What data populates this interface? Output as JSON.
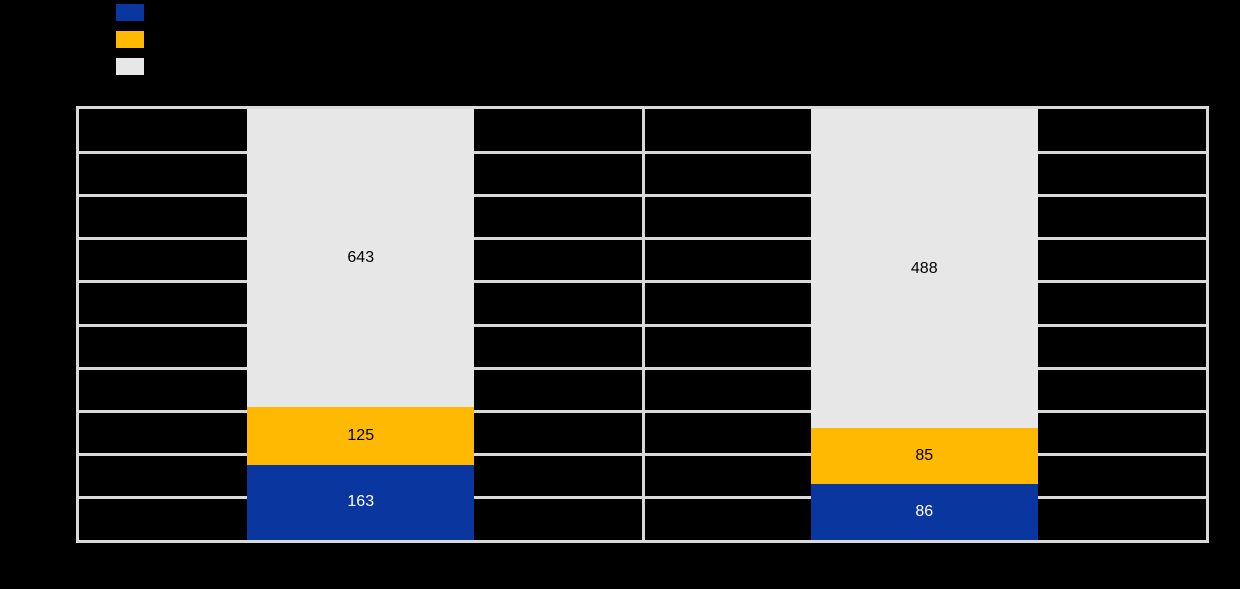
{
  "page": {
    "background_color": "#000000"
  },
  "legend": {
    "position": "top-left",
    "items": [
      {
        "name": "legend-item-blue",
        "swatch_color": "#0A36A0",
        "label": ""
      },
      {
        "name": "legend-item-yellow",
        "swatch_color": "#FFB900",
        "label": ""
      },
      {
        "name": "legend-item-gray",
        "swatch_color": "#E7E7E7",
        "label": ""
      }
    ]
  },
  "chart_data": {
    "type": "bar",
    "subtype": "stacked-column-100-percent",
    "title": "",
    "categories": [
      "",
      ""
    ],
    "series": [
      {
        "name": "series-1-blue",
        "color": "#0A36A0",
        "label_color": "#FFFFFF",
        "values": [
          163,
          86
        ]
      },
      {
        "name": "series-2-yellow",
        "color": "#FFB900",
        "label_color": "#000000",
        "values": [
          125,
          85
        ]
      },
      {
        "name": "series-3-gray",
        "color": "#E7E7E7",
        "label_color": "#000000",
        "values": [
          643,
          488
        ]
      }
    ],
    "stack_order_top_to_bottom": [
      "series-3-gray",
      "series-2-yellow",
      "series-1-blue"
    ],
    "data_labels_visible": true,
    "visible_data_labels": [
      [
        "643",
        "125",
        "163"
      ],
      [
        "488",
        "85",
        "86"
      ]
    ],
    "axis": {
      "x_tick_labels_visible": false,
      "y_tick_labels_visible": false
    },
    "grid": {
      "rows": 10,
      "columns": 2,
      "line_color": "#D9D9D9",
      "plot_border_color": "#D9D9D9"
    },
    "legend_position": "top-left"
  }
}
